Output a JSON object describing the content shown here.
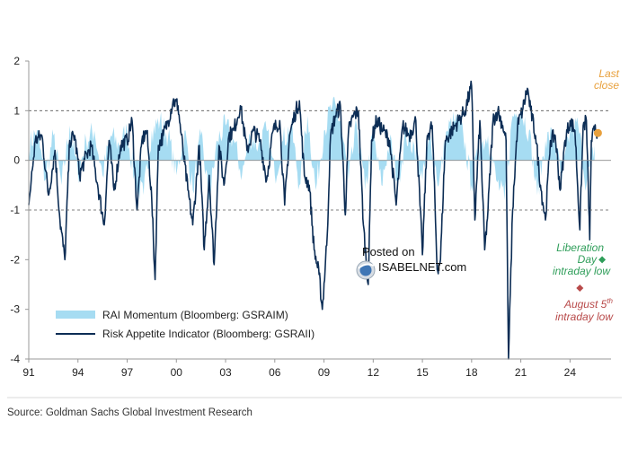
{
  "chart_data": {
    "type": "area",
    "title": "",
    "xlabel": "",
    "ylabel": "",
    "xlim": [
      1991,
      2026.5
    ],
    "ylim": [
      -4,
      2
    ],
    "x_ticks": [
      {
        "x": 1991,
        "label": "91"
      },
      {
        "x": 1994,
        "label": "94"
      },
      {
        "x": 1997,
        "label": "97"
      },
      {
        "x": 2000,
        "label": "00"
      },
      {
        "x": 2003,
        "label": "03"
      },
      {
        "x": 2006,
        "label": "06"
      },
      {
        "x": 2009,
        "label": "09"
      },
      {
        "x": 2012,
        "label": "12"
      },
      {
        "x": 2015,
        "label": "15"
      },
      {
        "x": 2018,
        "label": "18"
      },
      {
        "x": 2021,
        "label": "21"
      },
      {
        "x": 2024,
        "label": "24"
      }
    ],
    "y_ticks": [
      {
        "y": 2,
        "label": "2"
      },
      {
        "y": 1,
        "label": "1"
      },
      {
        "y": 0,
        "label": "0"
      },
      {
        "y": -1,
        "label": "-1"
      },
      {
        "y": -2,
        "label": "-2"
      },
      {
        "y": -3,
        "label": "-3"
      },
      {
        "y": -4,
        "label": "-4"
      }
    ],
    "reference_lines": [
      1,
      0,
      -1
    ],
    "grid": false,
    "legend_position": "bottom-left",
    "series": [
      {
        "name": "RAI Momentum (Bloomberg: GSRAIM)",
        "type": "area",
        "color": "#a6dcf2",
        "x": [
          1991.0,
          1991.5,
          1992.0,
          1992.5,
          1993.0,
          1993.5,
          1994.0,
          1994.5,
          1995.0,
          1995.5,
          1996.0,
          1996.5,
          1997.0,
          1997.5,
          1998.0,
          1998.5,
          1999.0,
          1999.5,
          2000.0,
          2000.5,
          2001.0,
          2001.5,
          2002.0,
          2002.5,
          2003.0,
          2003.5,
          2004.0,
          2004.5,
          2005.0,
          2005.5,
          2006.0,
          2006.5,
          2007.0,
          2007.5,
          2008.0,
          2008.5,
          2009.0,
          2009.5,
          2010.0,
          2010.5,
          2011.0,
          2011.5,
          2012.0,
          2012.5,
          2013.0,
          2013.5,
          2014.0,
          2014.5,
          2015.0,
          2015.5,
          2016.0,
          2016.5,
          2017.0,
          2017.5,
          2018.0,
          2018.5,
          2019.0,
          2019.5,
          2020.0,
          2020.5,
          2021.0,
          2021.5,
          2022.0,
          2022.5,
          2023.0,
          2023.5,
          2024.0,
          2024.5,
          2025.0,
          2025.5
        ],
        "values": [
          0.3,
          0.6,
          -0.4,
          0.5,
          -0.5,
          0.7,
          -0.3,
          0.4,
          0.6,
          -0.3,
          0.5,
          0.3,
          0.6,
          -0.5,
          -0.7,
          0.6,
          0.8,
          0.5,
          -0.3,
          0.6,
          -0.6,
          0.5,
          -0.8,
          0.4,
          0.7,
          0.4,
          -0.3,
          0.5,
          0.3,
          0.6,
          -0.3,
          0.4,
          0.7,
          -0.5,
          0.9,
          -0.6,
          0.6,
          1.1,
          0.8,
          -0.4,
          0.7,
          -0.6,
          0.5,
          -0.5,
          0.4,
          -0.4,
          0.5,
          0.3,
          -0.4,
          0.5,
          -0.5,
          0.6,
          0.8,
          0.5,
          -0.5,
          0.3,
          0.5,
          -0.4,
          -0.8,
          0.9,
          1.0,
          0.6,
          -0.7,
          0.4,
          0.5,
          -0.4,
          0.6,
          0.7,
          -0.5,
          0.3
        ]
      },
      {
        "name": "Risk Appetite Indicator (Bloomberg: GSRAII)",
        "type": "line",
        "color": "#0c2d55",
        "x": [
          1991.0,
          1991.4,
          1991.8,
          1992.2,
          1992.6,
          1992.9,
          1993.2,
          1993.5,
          1993.8,
          1994.1,
          1994.4,
          1994.8,
          1995.2,
          1995.6,
          1995.9,
          1996.2,
          1996.6,
          1997.0,
          1997.3,
          1997.6,
          1997.9,
          1998.2,
          1998.5,
          1998.7,
          1998.9,
          1999.2,
          1999.5,
          1999.8,
          2000.1,
          2000.4,
          2000.7,
          2001.0,
          2001.4,
          2001.7,
          2002.0,
          2002.3,
          2002.6,
          2002.9,
          2003.2,
          2003.5,
          2003.9,
          2004.3,
          2004.7,
          2005.1,
          2005.5,
          2005.9,
          2006.3,
          2006.6,
          2006.9,
          2007.2,
          2007.5,
          2007.8,
          2008.1,
          2008.4,
          2008.7,
          2008.9,
          2009.2,
          2009.4,
          2009.7,
          2010.0,
          2010.3,
          2010.5,
          2010.8,
          2011.1,
          2011.4,
          2011.7,
          2011.9,
          2012.2,
          2012.6,
          2013.0,
          2013.4,
          2013.8,
          2014.2,
          2014.6,
          2015.0,
          2015.3,
          2015.6,
          2015.9,
          2016.1,
          2016.4,
          2016.8,
          2017.2,
          2017.6,
          2018.0,
          2018.2,
          2018.5,
          2018.8,
          2019.0,
          2019.3,
          2019.6,
          2019.9,
          2020.1,
          2020.25,
          2020.5,
          2020.8,
          2021.1,
          2021.4,
          2021.6,
          2021.9,
          2022.2,
          2022.5,
          2022.8,
          2023.1,
          2023.4,
          2023.7,
          2024.0,
          2024.3,
          2024.6,
          2024.8,
          2025.0,
          2025.2,
          2025.3,
          2025.5,
          2025.7
        ],
        "values": [
          -0.9,
          0.4,
          0.5,
          -0.7,
          0.2,
          -1.2,
          -2.0,
          0.4,
          0.5,
          -0.3,
          0.0,
          0.3,
          -0.5,
          -1.3,
          0.4,
          -0.6,
          0.3,
          0.4,
          0.8,
          -1.0,
          0.4,
          0.6,
          -0.8,
          -2.4,
          0.3,
          0.5,
          0.8,
          1.2,
          1.1,
          0.2,
          -0.6,
          -1.3,
          0.3,
          -1.8,
          -0.3,
          -2.1,
          0.3,
          -0.5,
          0.5,
          0.6,
          1.1,
          0.2,
          0.6,
          0.4,
          -0.4,
          0.6,
          0.8,
          -0.9,
          0.5,
          0.9,
          1.2,
          -0.3,
          -0.5,
          -1.8,
          -2.3,
          -3.0,
          -1.5,
          0.5,
          0.9,
          1.1,
          -1.1,
          0.6,
          0.9,
          1.0,
          -1.3,
          -2.5,
          0.4,
          0.8,
          0.6,
          0.4,
          -0.9,
          0.7,
          0.5,
          0.8,
          -1.9,
          0.5,
          0.7,
          -2.2,
          -2.0,
          0.4,
          0.6,
          0.8,
          1.0,
          1.5,
          -1.2,
          0.8,
          -1.8,
          -1.0,
          0.8,
          1.0,
          0.7,
          0.4,
          -4.0,
          -1.0,
          0.7,
          1.0,
          1.45,
          1.0,
          0.5,
          -0.5,
          -1.2,
          0.4,
          0.5,
          -0.6,
          0.4,
          0.8,
          0.6,
          -1.4,
          0.7,
          0.8,
          -1.6,
          0.4,
          0.6,
          0.55
        ]
      }
    ],
    "annotations": [
      {
        "text_lines": [
          "Last",
          "close"
        ],
        "color": "#e8a03c",
        "marker": "circle",
        "x": 2025.7,
        "y": 0.55
      },
      {
        "text_lines": [
          "Liberation",
          "Day",
          "intraday low"
        ],
        "color": "#2f9e5a",
        "marker": "diamond",
        "x": 2025.3,
        "y": -2.0
      },
      {
        "text_main": "August 5",
        "text_sup": "th",
        "text_line2": "intraday low",
        "color": "#b84a4a",
        "marker": "diamond",
        "x": 2024.6,
        "y": -2.5
      }
    ]
  },
  "watermark": {
    "line1": "Posted on",
    "line2": "ISABELNET.com"
  },
  "source": "Source: Goldman Sachs Global Investment Research",
  "colors": {
    "axis": "#999999",
    "dashed": "#555555"
  }
}
